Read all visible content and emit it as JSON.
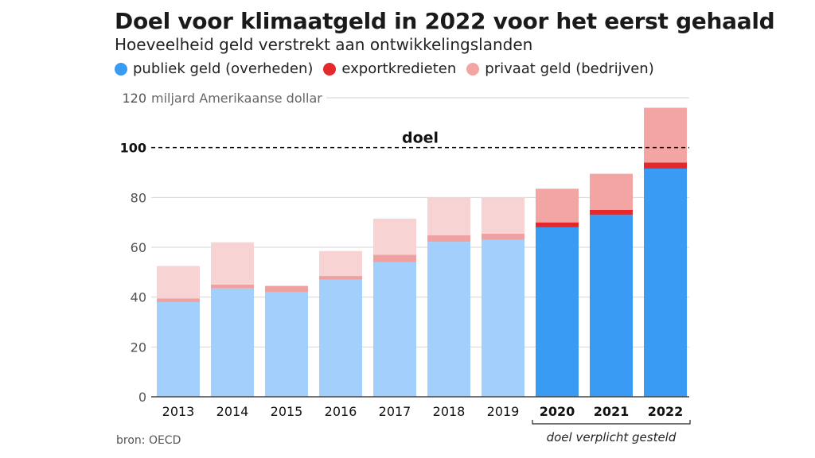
{
  "title": "Doel voor klimaatgeld in 2022 voor het eerst gehaald",
  "subtitle": "Hoeveelheid geld verstrekt aan ontwikkelingslanden",
  "source": "bron: OECD",
  "colors": {
    "publiek_light": "#a2cffb",
    "publiek": "#3a9bf4",
    "export_light": "#efa0a0",
    "export": "#e5282b",
    "privaat_light": "#f8d3d3",
    "privaat": "#f3a5a4"
  },
  "legend": [
    {
      "label": "publiek geld (overheden)",
      "color": "#3a9bf4"
    },
    {
      "label": "exportkredieten",
      "color": "#e5282b"
    },
    {
      "label": "privaat geld (bedrijven)",
      "color": "#f3a5a4"
    }
  ],
  "chart_data": {
    "type": "bar",
    "stacked": true,
    "categories": [
      "2013",
      "2014",
      "2015",
      "2016",
      "2017",
      "2018",
      "2019",
      "2020",
      "2021",
      "2022"
    ],
    "highlighted_categories": [
      "2020",
      "2021",
      "2022"
    ],
    "series": [
      {
        "name": "publiek geld (overheden)",
        "values": [
          38.0,
          43.5,
          42.0,
          47.0,
          54.0,
          62.2,
          63.0,
          68.0,
          73.0,
          91.6
        ]
      },
      {
        "name": "exportkredieten",
        "values": [
          1.5,
          1.5,
          2.5,
          1.5,
          3.0,
          2.6,
          2.5,
          2.0,
          2.0,
          2.4
        ]
      },
      {
        "name": "privaat geld (bedrijven)",
        "values": [
          13.0,
          17.0,
          0.0,
          10.0,
          14.5,
          15.2,
          14.5,
          13.5,
          14.5,
          22.0
        ]
      }
    ],
    "ylim": [
      0,
      120
    ],
    "yticks": [
      0,
      20,
      40,
      60,
      80,
      100,
      120
    ],
    "ylabel": "miljard Amerikaanse dollar",
    "reference_line": {
      "value": 100,
      "label": "doel"
    },
    "bracket_label": "doel verplicht gesteld",
    "grid": true
  }
}
